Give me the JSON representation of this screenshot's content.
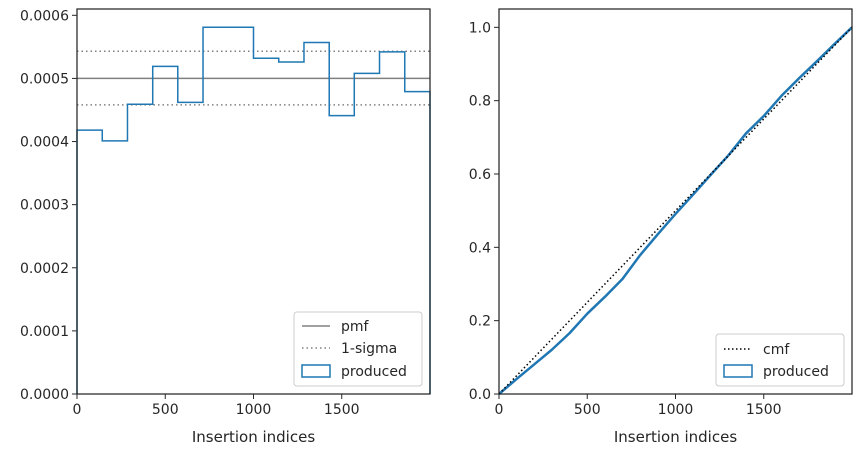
{
  "chart_data": [
    {
      "type": "line",
      "xlabel": "Insertion indices",
      "ylabel": "",
      "xlim": [
        0,
        2000
      ],
      "ylim": [
        0,
        0.00061
      ],
      "xticks": [
        "0",
        "500",
        "1000",
        "1500"
      ],
      "xtick_values": [
        0,
        500,
        1000,
        1500
      ],
      "yticks": [
        "0.0000",
        "0.0001",
        "0.0002",
        "0.0003",
        "0.0004",
        "0.0005",
        "0.0006"
      ],
      "ytick_values": [
        0,
        0.0001,
        0.0002,
        0.0003,
        0.0004,
        0.0005,
        0.0006
      ],
      "grid": false,
      "legend_position": "lower-right",
      "legend": [
        "pmf",
        "1-sigma",
        "produced"
      ],
      "pmf": 0.0005,
      "sigma_upper": 0.000543,
      "sigma_lower": 0.000458,
      "bin_edges": [
        0,
        143,
        286,
        429,
        571,
        714,
        857,
        1000,
        1143,
        1286,
        1429,
        1571,
        1714,
        1857,
        2000
      ],
      "produced": [
        0.000418,
        0.000401,
        0.000459,
        0.000519,
        0.000462,
        0.000581,
        0.000581,
        0.000532,
        0.000526,
        0.000557,
        0.000441,
        0.000508,
        0.000542,
        0.000479
      ],
      "colors": {
        "pmf": "#808080",
        "sigma": "#808080",
        "produced": "#1f77b4"
      }
    },
    {
      "type": "line",
      "xlabel": "Insertion indices",
      "ylabel": "",
      "xlim": [
        0,
        2000
      ],
      "ylim": [
        0,
        1.05
      ],
      "xticks": [
        "0",
        "500",
        "1000",
        "1500"
      ],
      "xtick_values": [
        0,
        500,
        1000,
        1500
      ],
      "yticks": [
        "0.0",
        "0.2",
        "0.4",
        "0.6",
        "0.8",
        "1.0"
      ],
      "ytick_values": [
        0,
        0.2,
        0.4,
        0.6,
        0.8,
        1.0
      ],
      "grid": false,
      "legend_position": "lower-right",
      "legend": [
        "cmf",
        "produced"
      ],
      "cmf": {
        "x": [
          0,
          2000
        ],
        "y": [
          0,
          1
        ]
      },
      "produced": {
        "x": [
          0,
          100,
          200,
          300,
          400,
          500,
          600,
          700,
          800,
          900,
          1000,
          1100,
          1200,
          1300,
          1400,
          1500,
          1600,
          1700,
          1800,
          1900,
          2000
        ],
        "y": [
          0,
          0.041,
          0.081,
          0.121,
          0.166,
          0.219,
          0.265,
          0.314,
          0.379,
          0.436,
          0.491,
          0.544,
          0.598,
          0.651,
          0.711,
          0.758,
          0.813,
          0.861,
          0.907,
          0.954,
          1.0
        ]
      },
      "colors": {
        "cmf": "#000000",
        "produced": "#1f77b4"
      }
    }
  ]
}
